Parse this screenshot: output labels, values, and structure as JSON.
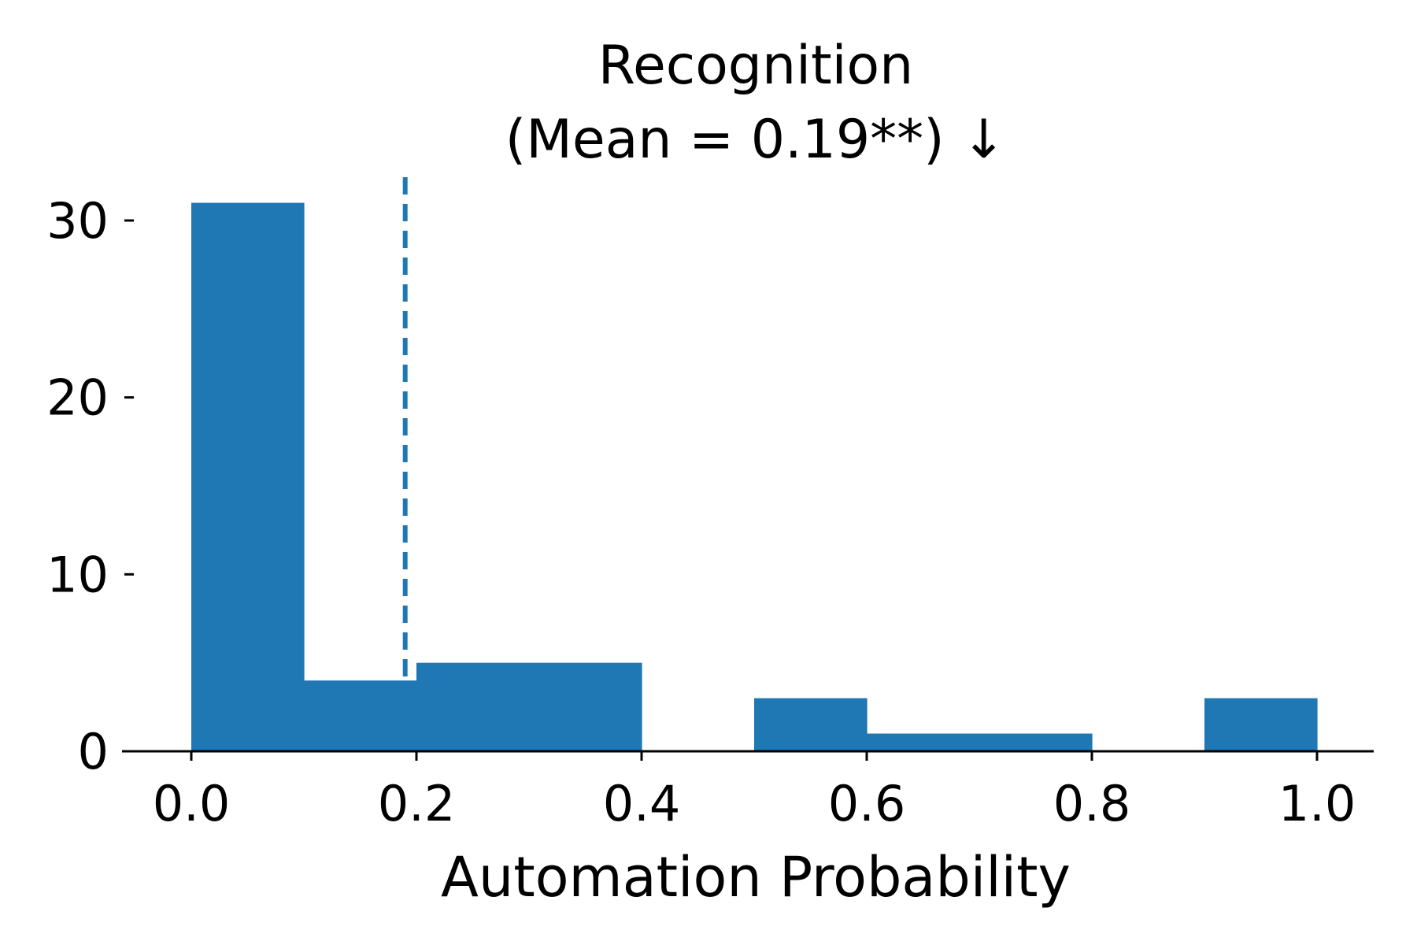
{
  "chart_data": {
    "type": "bar",
    "title_line1": "Recognition",
    "title_line2": "(Mean = 0.19**) ↓",
    "xlabel": "Automation Probability",
    "ylabel": "",
    "xlim": [
      -0.063,
      1.05
    ],
    "ylim": [
      0,
      32.5
    ],
    "x_ticks": [
      0.0,
      0.2,
      0.4,
      0.6,
      0.8,
      1.0
    ],
    "x_tick_labels": [
      "0.0",
      "0.2",
      "0.4",
      "0.6",
      "0.8",
      "1.0"
    ],
    "y_ticks": [
      0,
      10,
      20,
      30
    ],
    "y_tick_labels": [
      "0",
      "10",
      "20",
      "30"
    ],
    "bins": [
      {
        "start": 0.0,
        "end": 0.1,
        "count": 31
      },
      {
        "start": 0.1,
        "end": 0.2,
        "count": 4
      },
      {
        "start": 0.2,
        "end": 0.3,
        "count": 5
      },
      {
        "start": 0.3,
        "end": 0.4,
        "count": 5
      },
      {
        "start": 0.4,
        "end": 0.5,
        "count": 0
      },
      {
        "start": 0.5,
        "end": 0.6,
        "count": 3
      },
      {
        "start": 0.6,
        "end": 0.7,
        "count": 1
      },
      {
        "start": 0.7,
        "end": 0.8,
        "count": 1
      },
      {
        "start": 0.8,
        "end": 0.9,
        "count": 0
      },
      {
        "start": 0.9,
        "end": 1.0,
        "count": 3
      }
    ],
    "mean": 0.19,
    "bar_color": "#1f77b4",
    "mean_line_color": "#1f77b4",
    "grid": false
  }
}
